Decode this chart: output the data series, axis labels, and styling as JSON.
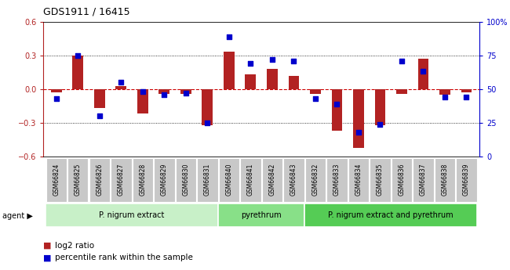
{
  "title": "GDS1911 / 16415",
  "samples": [
    "GSM66824",
    "GSM66825",
    "GSM66826",
    "GSM66827",
    "GSM66828",
    "GSM66829",
    "GSM66830",
    "GSM66831",
    "GSM66840",
    "GSM66841",
    "GSM66842",
    "GSM66843",
    "GSM66832",
    "GSM66833",
    "GSM66834",
    "GSM66835",
    "GSM66836",
    "GSM66837",
    "GSM66838",
    "GSM66839"
  ],
  "log2_ratio": [
    -0.03,
    0.3,
    -0.17,
    0.03,
    -0.22,
    -0.04,
    -0.04,
    -0.32,
    0.33,
    0.13,
    0.18,
    0.12,
    -0.04,
    -0.37,
    -0.52,
    -0.32,
    -0.04,
    0.27,
    -0.05,
    -0.03
  ],
  "percentile_rank": [
    43,
    75,
    30,
    55,
    48,
    46,
    47,
    25,
    89,
    69,
    72,
    71,
    43,
    39,
    18,
    24,
    71,
    63,
    44,
    44
  ],
  "groups": [
    {
      "label": "P. nigrum extract",
      "start": 0,
      "end": 8
    },
    {
      "label": "pyrethrum",
      "start": 8,
      "end": 12
    },
    {
      "label": "P. nigrum extract and pyrethrum",
      "start": 12,
      "end": 20
    }
  ],
  "group_colors": [
    "#c8f0c8",
    "#88e088",
    "#55cc55"
  ],
  "ylim_left": [
    -0.6,
    0.6
  ],
  "ylim_right": [
    0,
    100
  ],
  "yticks_left": [
    -0.6,
    -0.3,
    0.0,
    0.3,
    0.6
  ],
  "yticks_right": [
    0,
    25,
    50,
    75,
    100
  ],
  "bar_color": "#b22222",
  "dot_color": "#0000cc",
  "zero_line_color": "#cc0000",
  "bar_width": 0.5,
  "dot_size": 22,
  "legend_items": [
    "log2 ratio",
    "percentile rank within the sample"
  ]
}
